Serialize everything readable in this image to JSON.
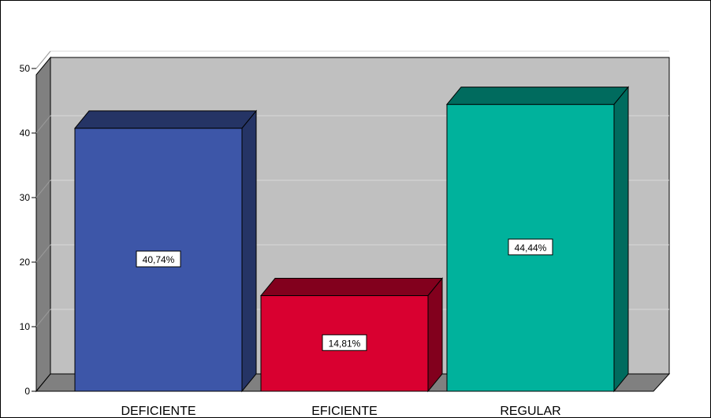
{
  "chart_data": {
    "type": "bar",
    "categories": [
      "DEFICIENTE",
      "EFICIENTE",
      "REGULAR"
    ],
    "values": [
      40.74,
      14.81,
      44.44
    ],
    "data_labels": [
      "40,74%",
      "14,81%",
      "44,44%"
    ],
    "colors": [
      "#3d56a8",
      "#d90030",
      "#00b29c"
    ],
    "yticks": [
      "0",
      "10",
      "20",
      "30",
      "40",
      "50"
    ],
    "ylim": [
      0,
      50
    ],
    "grid": true,
    "style": "3d",
    "plot_background": "#c0c0c0",
    "title": "",
    "xlabel": "",
    "ylabel": ""
  }
}
